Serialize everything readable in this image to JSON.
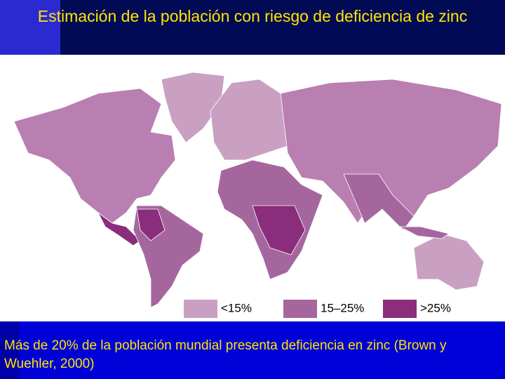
{
  "header": {
    "title": "Estimación de la población con riesgo de deficiencia de zinc"
  },
  "legend": [
    {
      "label": "<15%",
      "color": "#c9a0c2"
    },
    {
      "label": "15–25%",
      "color": "#a5669e"
    },
    {
      "label": ">25%",
      "color": "#8a2d7c"
    }
  ],
  "footer": {
    "text": "Más de 20% de la población mundial presenta deficiencia en zinc (Brown y Wuehler, 2000)"
  }
}
